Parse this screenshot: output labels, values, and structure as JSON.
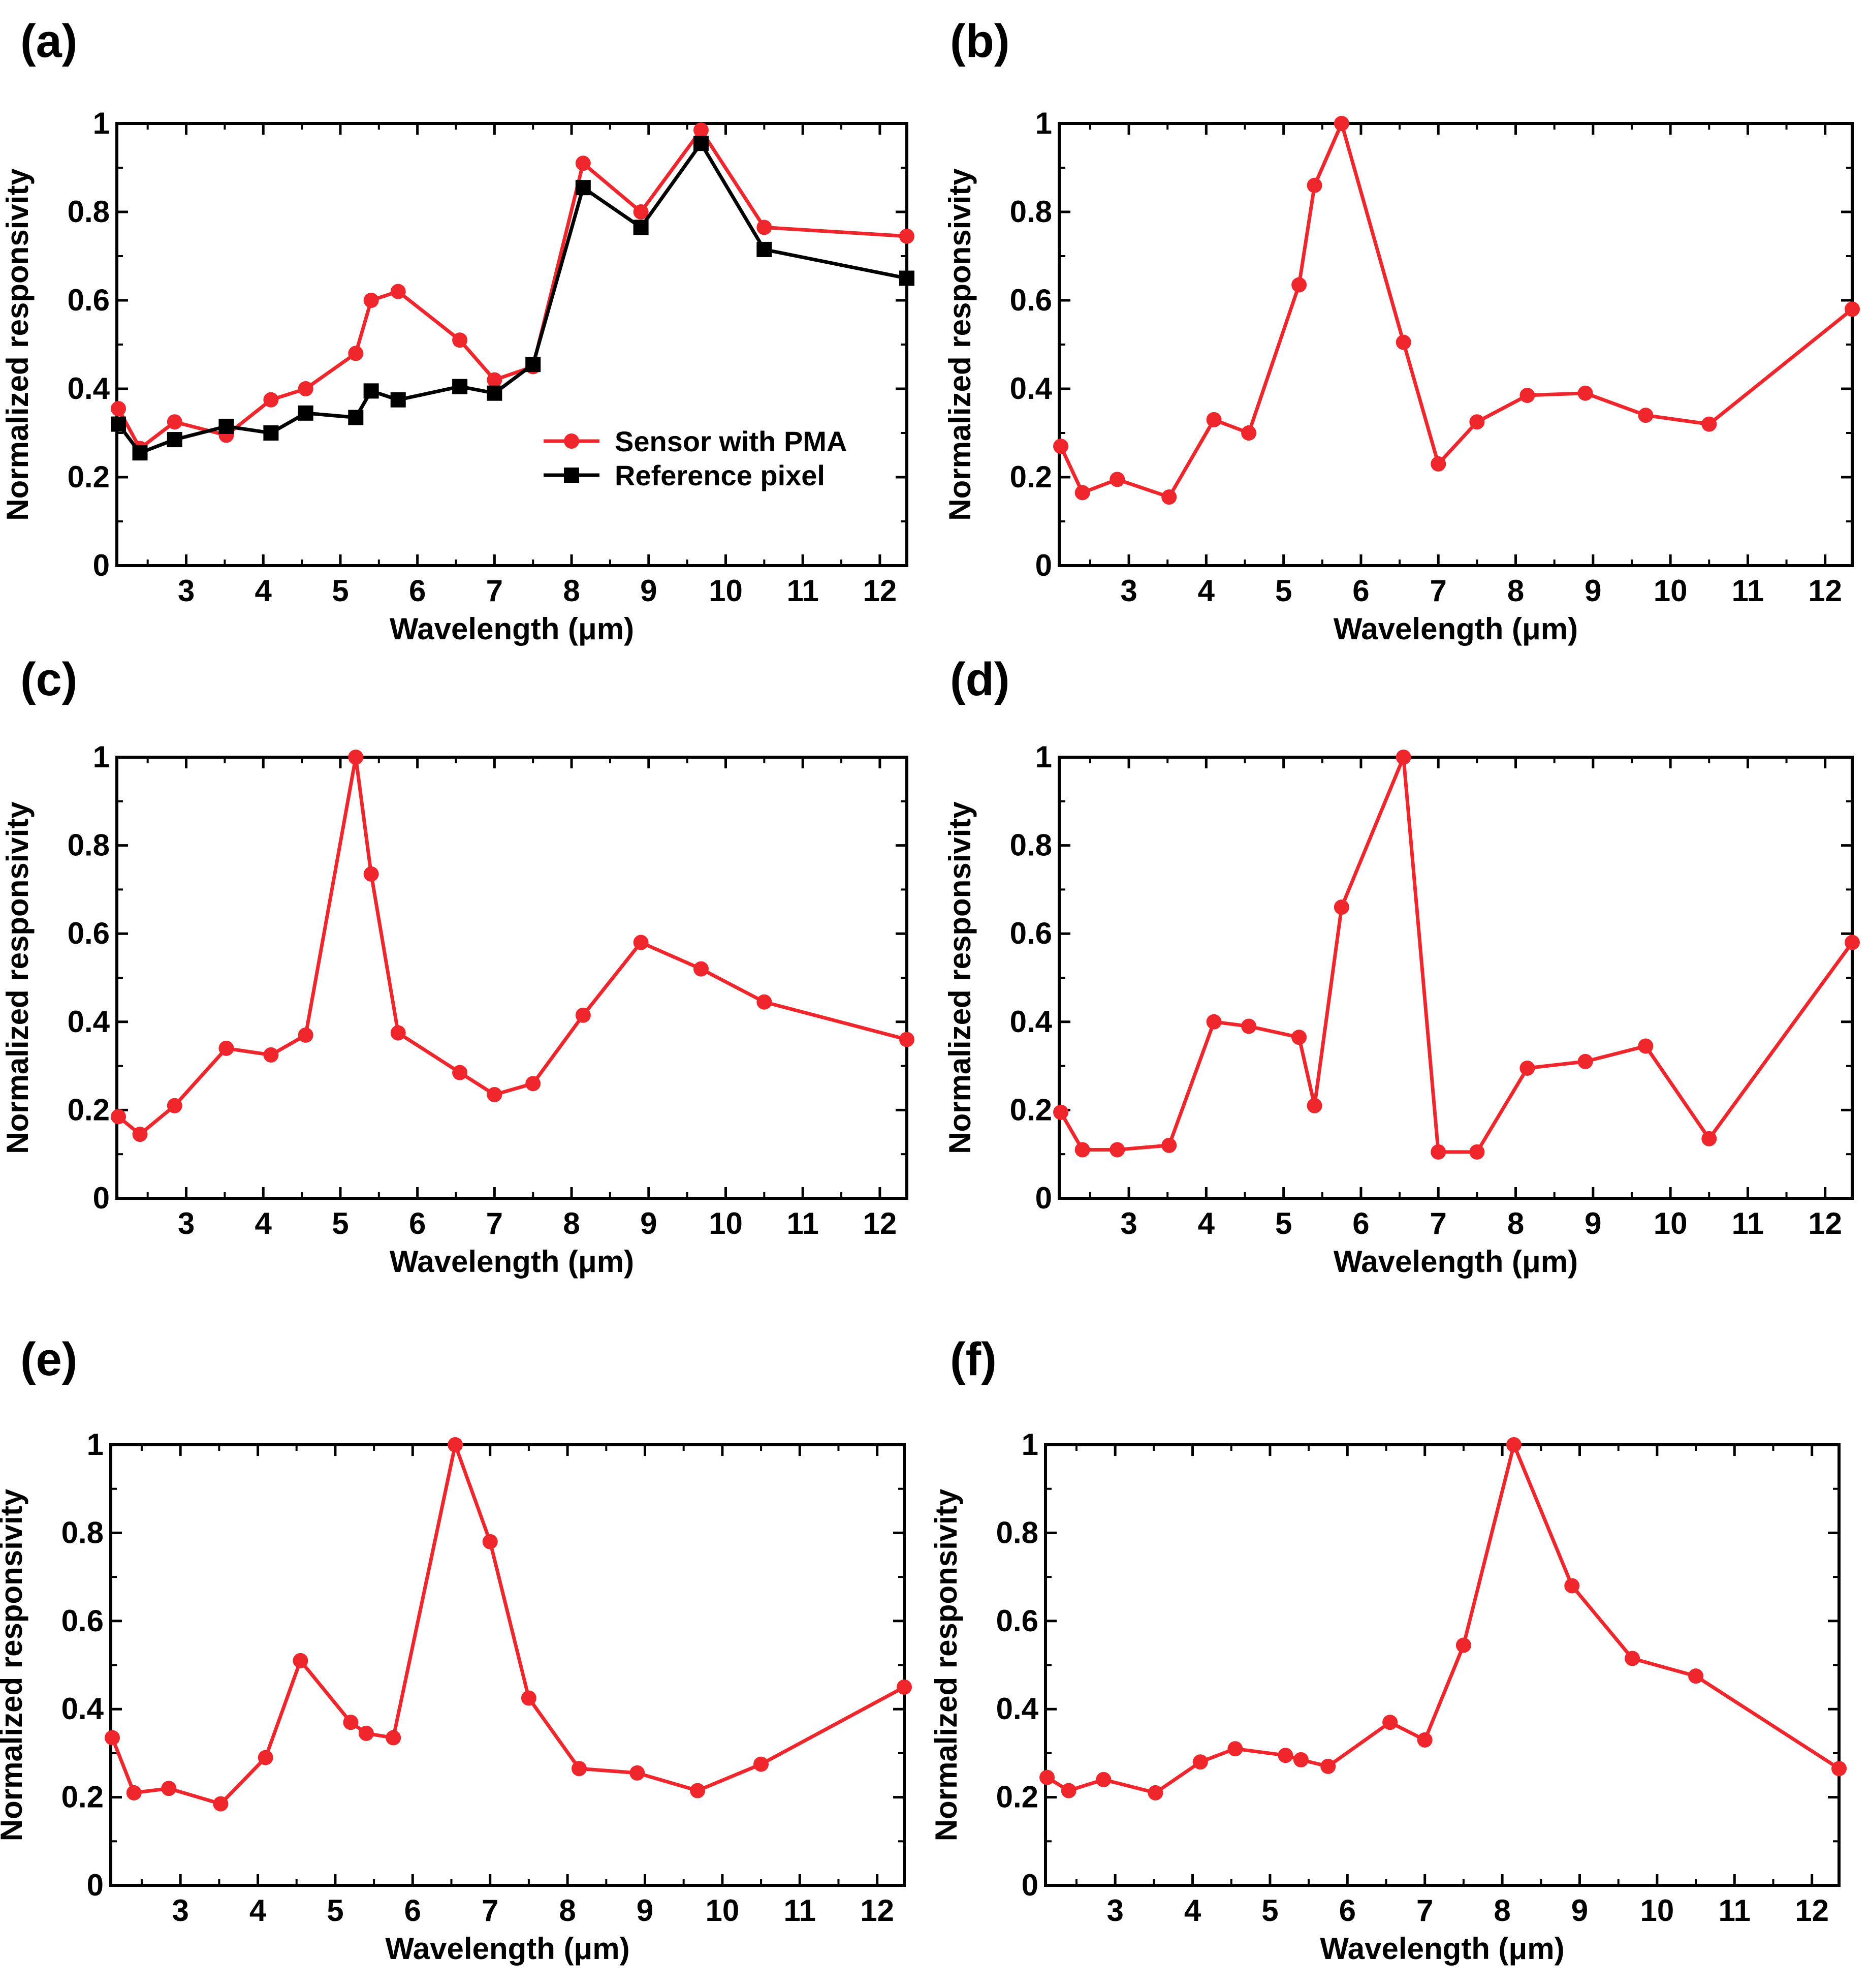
{
  "colors": {
    "sensor": "#f0262d",
    "reference": "#000000",
    "axis": "#000000"
  },
  "chart_data": [
    {
      "panel_label": "(a)",
      "type": "line",
      "xlabel": "Wavelength (μm)",
      "ylabel": "Normalized responsivity",
      "xlim": [
        2.1,
        12.35
      ],
      "ylim": [
        0,
        1
      ],
      "xticks": [
        3,
        4,
        5,
        6,
        7,
        8,
        9,
        10,
        11,
        12
      ],
      "yticks": [
        0,
        0.2,
        0.4,
        0.6,
        0.8,
        1
      ],
      "ytick_labels": [
        "0",
        "0.2",
        "0.4",
        "0.6",
        "0.8",
        "1"
      ],
      "legend": {
        "position": "center-right",
        "entries": [
          "Sensor with PMA",
          "Reference pixel"
        ]
      },
      "series": [
        {
          "name": "Sensor with PMA",
          "color": "#f0262d",
          "marker": "circle",
          "x": [
            2.12,
            2.4,
            2.85,
            3.52,
            4.1,
            4.55,
            5.2,
            5.4,
            5.75,
            6.55,
            7.0,
            7.5,
            8.15,
            8.9,
            9.68,
            10.5,
            12.35
          ],
          "y": [
            0.355,
            0.265,
            0.325,
            0.295,
            0.375,
            0.4,
            0.48,
            0.6,
            0.62,
            0.51,
            0.42,
            0.45,
            0.91,
            0.8,
            0.985,
            0.765,
            0.745
          ]
        },
        {
          "name": "Reference pixel",
          "color": "#000000",
          "marker": "square",
          "x": [
            2.12,
            2.4,
            2.85,
            3.52,
            4.1,
            4.55,
            5.2,
            5.4,
            5.75,
            6.55,
            7.0,
            7.5,
            8.15,
            8.9,
            9.68,
            10.5,
            12.35
          ],
          "y": [
            0.32,
            0.255,
            0.285,
            0.315,
            0.3,
            0.345,
            0.335,
            0.395,
            0.375,
            0.405,
            0.39,
            0.455,
            0.855,
            0.765,
            0.955,
            0.715,
            0.65
          ]
        }
      ]
    },
    {
      "panel_label": "(b)",
      "type": "line",
      "xlabel": "Wavelength (μm)",
      "ylabel": "Normalized responsivity",
      "xlim": [
        2.1,
        12.35
      ],
      "ylim": [
        0,
        1
      ],
      "xticks": [
        3,
        4,
        5,
        6,
        7,
        8,
        9,
        10,
        11,
        12
      ],
      "yticks": [
        0,
        0.2,
        0.4,
        0.6,
        0.8,
        1
      ],
      "ytick_labels": [
        "0",
        "0.2",
        "0.4",
        "0.6",
        "0.8",
        "1"
      ],
      "series": [
        {
          "name": "Sensor with PMA",
          "color": "#f0262d",
          "marker": "circle",
          "x": [
            2.12,
            2.4,
            2.85,
            3.52,
            4.1,
            4.55,
            5.2,
            5.4,
            5.75,
            6.55,
            7.0,
            7.5,
            8.15,
            8.9,
            9.68,
            10.5,
            12.35
          ],
          "y": [
            0.27,
            0.165,
            0.195,
            0.155,
            0.33,
            0.3,
            0.635,
            0.86,
            1.0,
            0.505,
            0.23,
            0.325,
            0.385,
            0.39,
            0.34,
            0.32,
            0.58
          ]
        }
      ]
    },
    {
      "panel_label": "(c)",
      "type": "line",
      "xlabel": "Wavelength (μm)",
      "ylabel": "Normalized responsivity",
      "xlim": [
        2.1,
        12.35
      ],
      "ylim": [
        0,
        1
      ],
      "xticks": [
        3,
        4,
        5,
        6,
        7,
        8,
        9,
        10,
        11,
        12
      ],
      "yticks": [
        0,
        0.2,
        0.4,
        0.6,
        0.8,
        1
      ],
      "ytick_labels": [
        "0",
        "0.2",
        "0.4",
        "0.6",
        "0.8",
        "1"
      ],
      "series": [
        {
          "name": "Sensor with PMA",
          "color": "#f0262d",
          "marker": "circle",
          "x": [
            2.12,
            2.4,
            2.85,
            3.52,
            4.1,
            4.55,
            5.2,
            5.4,
            5.75,
            6.55,
            7.0,
            7.5,
            8.15,
            8.9,
            9.68,
            10.5,
            12.35
          ],
          "y": [
            0.185,
            0.145,
            0.21,
            0.34,
            0.325,
            0.37,
            1.0,
            0.735,
            0.375,
            0.285,
            0.235,
            0.26,
            0.415,
            0.58,
            0.52,
            0.445,
            0.36
          ]
        }
      ]
    },
    {
      "panel_label": "(d)",
      "type": "line",
      "xlabel": "Wavelength (μm)",
      "ylabel": "Normalized responsivity",
      "xlim": [
        2.1,
        12.35
      ],
      "ylim": [
        0,
        1
      ],
      "xticks": [
        3,
        4,
        5,
        6,
        7,
        8,
        9,
        10,
        11,
        12
      ],
      "yticks": [
        0,
        0.2,
        0.4,
        0.6,
        0.8,
        1
      ],
      "ytick_labels": [
        "0",
        "0.2",
        "0.4",
        "0.6",
        "0.8",
        "1"
      ],
      "series": [
        {
          "name": "Sensor with PMA",
          "color": "#f0262d",
          "marker": "circle",
          "x": [
            2.12,
            2.4,
            2.85,
            3.52,
            4.1,
            4.55,
            5.2,
            5.4,
            5.75,
            6.55,
            7.0,
            7.5,
            8.15,
            8.9,
            9.68,
            10.5,
            12.35
          ],
          "y": [
            0.195,
            0.11,
            0.11,
            0.12,
            0.4,
            0.39,
            0.365,
            0.21,
            0.66,
            1.0,
            0.105,
            0.105,
            0.295,
            0.31,
            0.345,
            0.135,
            0.58
          ]
        }
      ]
    },
    {
      "panel_label": "(e)",
      "type": "line",
      "xlabel": "Wavelength (μm)",
      "ylabel": "Normalized responsivity",
      "xlim": [
        2.1,
        12.35
      ],
      "ylim": [
        0,
        1
      ],
      "xticks": [
        3,
        4,
        5,
        6,
        7,
        8,
        9,
        10,
        11,
        12
      ],
      "yticks": [
        0,
        0.2,
        0.4,
        0.6,
        0.8,
        1
      ],
      "ytick_labels": [
        "0",
        "0.2",
        "0.4",
        "0.6",
        "0.8",
        "1"
      ],
      "series": [
        {
          "name": "Sensor with PMA",
          "color": "#f0262d",
          "marker": "circle",
          "x": [
            2.12,
            2.4,
            2.85,
            3.52,
            4.1,
            4.55,
            5.2,
            5.4,
            5.75,
            6.55,
            7.0,
            7.5,
            8.15,
            8.9,
            9.68,
            10.5,
            12.35
          ],
          "y": [
            0.335,
            0.21,
            0.22,
            0.185,
            0.29,
            0.51,
            0.37,
            0.345,
            0.335,
            1.0,
            0.78,
            0.425,
            0.265,
            0.255,
            0.215,
            0.275,
            0.45
          ]
        }
      ]
    },
    {
      "panel_label": "(f)",
      "type": "line",
      "xlabel": "Wavelength (μm)",
      "ylabel": "Normalized responsivity",
      "xlim": [
        2.1,
        12.35
      ],
      "ylim": [
        0,
        1
      ],
      "xticks": [
        3,
        4,
        5,
        6,
        7,
        8,
        9,
        10,
        11,
        12
      ],
      "yticks": [
        0,
        0.2,
        0.4,
        0.6,
        0.8,
        1
      ],
      "ytick_labels": [
        "0",
        "0.2",
        "0.4",
        "0.6",
        "0.8",
        "1"
      ],
      "series": [
        {
          "name": "Sensor with PMA",
          "color": "#f0262d",
          "marker": "circle",
          "x": [
            2.12,
            2.4,
            2.85,
            3.52,
            4.1,
            4.55,
            5.2,
            5.4,
            5.75,
            6.55,
            7.0,
            7.5,
            8.15,
            8.9,
            9.68,
            10.5,
            12.35
          ],
          "y": [
            0.245,
            0.215,
            0.24,
            0.21,
            0.28,
            0.31,
            0.295,
            0.285,
            0.27,
            0.37,
            0.33,
            0.545,
            1.0,
            0.68,
            0.515,
            0.475,
            0.265
          ]
        }
      ]
    }
  ]
}
